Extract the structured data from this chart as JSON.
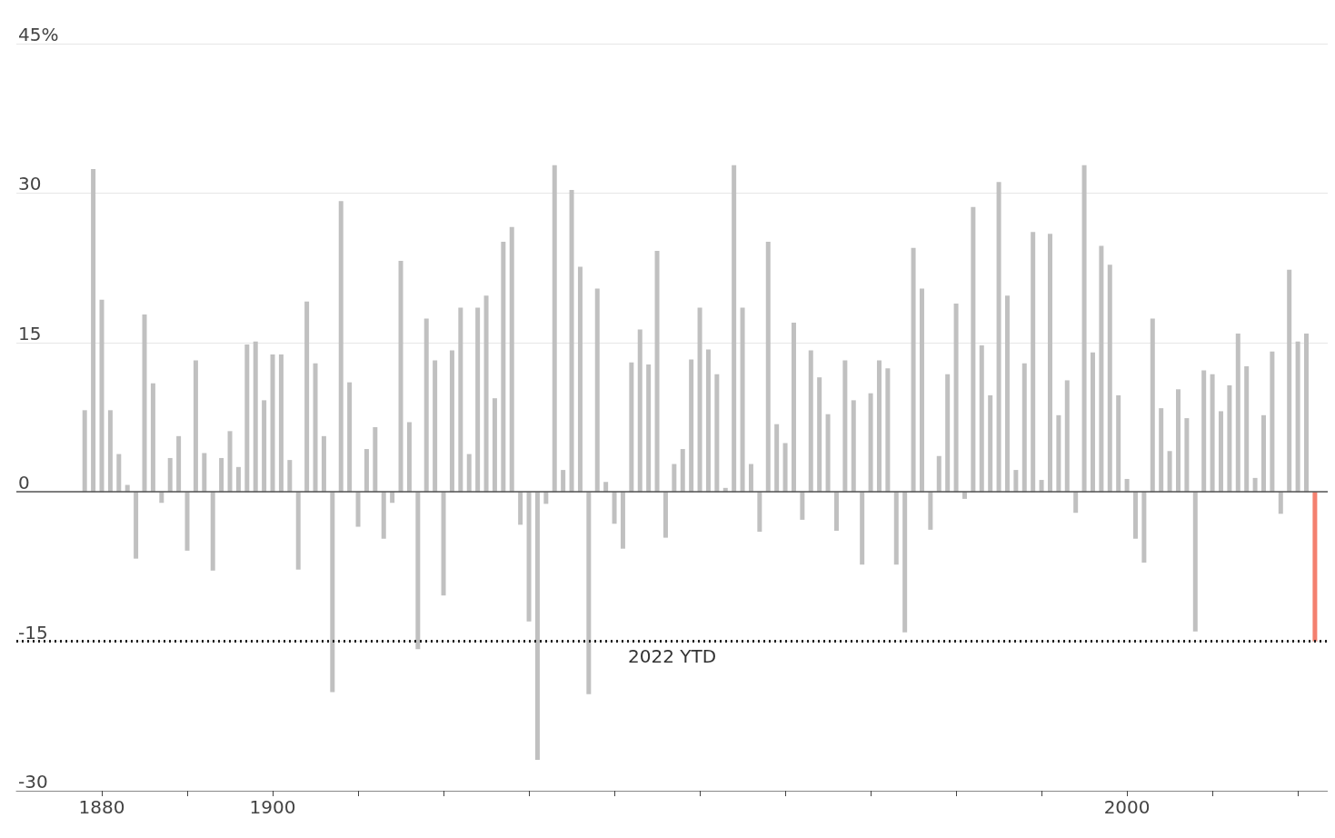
{
  "chart_data": {
    "type": "bar",
    "x": [
      1878,
      1879,
      1880,
      1881,
      1882,
      1883,
      1884,
      1885,
      1886,
      1887,
      1888,
      1889,
      1890,
      1891,
      1892,
      1893,
      1894,
      1895,
      1896,
      1897,
      1898,
      1899,
      1900,
      1901,
      1902,
      1903,
      1904,
      1905,
      1906,
      1907,
      1908,
      1909,
      1910,
      1911,
      1912,
      1913,
      1914,
      1915,
      1916,
      1917,
      1918,
      1919,
      1920,
      1921,
      1922,
      1923,
      1924,
      1925,
      1926,
      1927,
      1928,
      1929,
      1930,
      1931,
      1932,
      1933,
      1934,
      1935,
      1936,
      1937,
      1938,
      1939,
      1940,
      1941,
      1942,
      1943,
      1944,
      1945,
      1946,
      1947,
      1948,
      1949,
      1950,
      1951,
      1952,
      1953,
      1954,
      1955,
      1956,
      1957,
      1958,
      1959,
      1960,
      1961,
      1962,
      1963,
      1964,
      1965,
      1966,
      1967,
      1968,
      1969,
      1970,
      1971,
      1972,
      1973,
      1974,
      1975,
      1976,
      1977,
      1978,
      1979,
      1980,
      1981,
      1982,
      1983,
      1984,
      1985,
      1986,
      1987,
      1988,
      1989,
      1990,
      1991,
      1992,
      1993,
      1994,
      1995,
      1996,
      1997,
      1998,
      1999,
      2000,
      2001,
      2002,
      2003,
      2004,
      2005,
      2006,
      2007,
      2008,
      2009,
      2010,
      2011,
      2012,
      2013,
      2014,
      2015,
      2016,
      2017,
      2018,
      2019,
      2020,
      2021
    ],
    "series": [
      {
        "color": "#c0c0c0",
        "values": [
          8.2,
          32.4,
          19.3,
          8.2,
          3.8,
          0.7,
          -6.7,
          17.8,
          10.9,
          -1.1,
          3.4,
          5.6,
          -5.9,
          13.2,
          3.9,
          -7.9,
          3.4,
          6.1,
          2.5,
          14.8,
          15.1,
          9.2,
          13.8,
          13.8,
          3.2,
          -7.8,
          19.1,
          12.9,
          5.6,
          -20.1,
          29.2,
          11.0,
          -3.5,
          4.3,
          6.5,
          -4.7,
          -1.1,
          23.2,
          7.0,
          -15.8,
          17.4,
          13.2,
          -10.4,
          14.2,
          18.5,
          3.8,
          18.5,
          19.7,
          9.4,
          25.1,
          26.6,
          -3.3,
          -13.0,
          -26.9,
          -1.2,
          32.8,
          2.2,
          30.3,
          22.6,
          -20.3,
          20.4,
          1.0,
          -3.2,
          -5.7,
          13.0,
          16.3,
          12.8,
          24.2,
          -4.6,
          2.8,
          4.3,
          13.3,
          18.5,
          14.3,
          11.8,
          0.4,
          32.8,
          18.5,
          2.8,
          -4.0,
          25.1,
          6.8,
          4.9,
          17.0,
          -2.8,
          14.2,
          11.5,
          7.8,
          -3.9,
          13.2,
          9.2,
          -7.3,
          9.9,
          13.2,
          12.4,
          -7.3,
          -14.1,
          24.5,
          20.4,
          -3.8,
          3.6,
          11.8,
          18.9,
          -0.7,
          28.6,
          14.7,
          9.7,
          31.1,
          19.7,
          2.2,
          12.9,
          26.1,
          1.2,
          25.9,
          7.7,
          11.2,
          -2.1,
          32.8,
          14.0,
          24.7,
          22.8,
          9.7,
          1.3,
          -4.7,
          -7.1,
          17.4,
          8.4,
          4.1,
          10.3,
          7.4,
          -14.0,
          12.2,
          11.8,
          8.1,
          10.7,
          15.9,
          12.6,
          1.4,
          7.7,
          14.1,
          -2.2,
          22.3,
          15.1,
          15.9
        ]
      },
      {
        "color": "#f4806f",
        "x": [
          2022
        ],
        "values": [
          -15.0
        ]
      }
    ],
    "xlim": [
      1870,
      2023.5
    ],
    "xticks": [
      {
        "value": 1880,
        "label": "1880"
      },
      {
        "value": 1890,
        "label": null
      },
      {
        "value": 1900,
        "label": "1900"
      },
      {
        "value": 1910,
        "label": null
      },
      {
        "value": 1920,
        "label": null
      },
      {
        "value": 1930,
        "label": null
      },
      {
        "value": 1940,
        "label": null
      },
      {
        "value": 1950,
        "label": null
      },
      {
        "value": 1960,
        "label": null
      },
      {
        "value": 1970,
        "label": null
      },
      {
        "value": 1980,
        "label": null
      },
      {
        "value": 1990,
        "label": null
      },
      {
        "value": 2000,
        "label": "2000"
      },
      {
        "value": 2010,
        "label": null
      },
      {
        "value": 2020,
        "label": null
      }
    ],
    "ylim": [
      -30,
      45
    ],
    "yticks": [
      -30,
      -15,
      0,
      15,
      30,
      {
        "value": 45,
        "label": "45%"
      }
    ],
    "grid": "y",
    "ref_lines": [
      {
        "axis": "y",
        "value": -15,
        "label": "2022 YTD",
        "color": "#222222",
        "line_style": "dotted"
      },
      {
        "axis": "y",
        "value": 0,
        "color": "#555555",
        "line_style": "solid"
      }
    ]
  }
}
